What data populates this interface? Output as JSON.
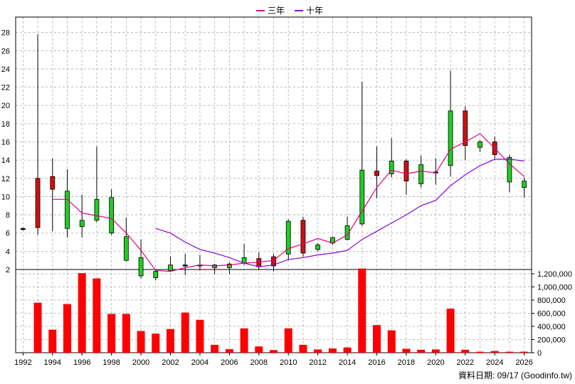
{
  "chart_data": {
    "type": "candlestick+bar",
    "legend": [
      {
        "name": "三年",
        "color": "#e0007f"
      },
      {
        "name": "十年",
        "color": "#8a00d4"
      }
    ],
    "source_text": "資料日期: 09/17  (Goodinfo.tw)",
    "x_ticks": [
      "1992",
      "1994",
      "1996",
      "1998",
      "2000",
      "2002",
      "2004",
      "2006",
      "2008",
      "2010",
      "2012",
      "2014",
      "2016",
      "2018",
      "2020",
      "2022",
      "2024",
      "2026"
    ],
    "price_axis": {
      "ticks": [
        "2",
        "4",
        "6",
        "8",
        "10",
        "12",
        "14",
        "16",
        "18",
        "20",
        "22",
        "24",
        "26",
        "28"
      ],
      "ylim": [
        0.5,
        28.5
      ]
    },
    "volume_axis": {
      "ticks": [
        "0",
        "200,000",
        "400,000",
        "600,000",
        "800,000",
        "1,000,000",
        "1,200,000"
      ],
      "ylim": [
        0,
        1200000
      ]
    },
    "candles": [
      {
        "year": 1992,
        "open": 6.5,
        "close": 6.5,
        "high": 6.6,
        "low": 6.3
      },
      {
        "year": 1993,
        "open": 6.6,
        "close": 12.0,
        "high": 27.8,
        "low": 5.8
      },
      {
        "year": 1994,
        "open": 10.8,
        "close": 12.2,
        "high": 14.2,
        "low": 6.2
      },
      {
        "year": 1995,
        "open": 10.6,
        "close": 6.5,
        "high": 13.0,
        "low": 5.5
      },
      {
        "year": 1996,
        "open": 7.4,
        "close": 6.7,
        "high": 10.2,
        "low": 5.5
      },
      {
        "year": 1997,
        "open": 9.7,
        "close": 7.4,
        "high": 15.5,
        "low": 7.2
      },
      {
        "year": 1998,
        "open": 9.9,
        "close": 6.0,
        "high": 10.8,
        "low": 5.8
      },
      {
        "year": 1999,
        "open": 5.6,
        "close": 3.0,
        "high": 7.7,
        "low": 2.9
      },
      {
        "year": 2000,
        "open": 3.3,
        "close": 1.3,
        "high": 5.3,
        "low": 1.0
      },
      {
        "year": 2001,
        "open": 1.8,
        "close": 1.1,
        "high": 2.0,
        "low": 0.8
      },
      {
        "year": 2002,
        "open": 2.5,
        "close": 1.9,
        "high": 3.4,
        "low": 1.8
      },
      {
        "year": 2003,
        "open": 2.5,
        "close": 2.5,
        "high": 3.7,
        "low": 1.4
      },
      {
        "year": 2004,
        "open": 2.5,
        "close": 2.5,
        "high": 3.6,
        "low": 1.9
      },
      {
        "year": 2005,
        "open": 2.5,
        "close": 2.2,
        "high": 2.6,
        "low": 1.5
      },
      {
        "year": 2006,
        "open": 2.6,
        "close": 2.2,
        "high": 2.8,
        "low": 1.5
      },
      {
        "year": 2007,
        "open": 3.3,
        "close": 2.7,
        "high": 4.8,
        "low": 2.5
      },
      {
        "year": 2008,
        "open": 2.3,
        "close": 3.2,
        "high": 3.9,
        "low": 2.0
      },
      {
        "year": 2009,
        "open": 2.4,
        "close": 3.4,
        "high": 3.7,
        "low": 1.8
      },
      {
        "year": 2010,
        "open": 7.3,
        "close": 3.7,
        "high": 7.5,
        "low": 3.0
      },
      {
        "year": 2011,
        "open": 3.8,
        "close": 7.4,
        "high": 7.8,
        "low": 3.4
      },
      {
        "year": 2012,
        "open": 4.7,
        "close": 4.2,
        "high": 4.9,
        "low": 4.0
      },
      {
        "year": 2013,
        "open": 5.5,
        "close": 4.9,
        "high": 5.6,
        "low": 4.7
      },
      {
        "year": 2014,
        "open": 6.8,
        "close": 5.3,
        "high": 7.8,
        "low": 5.2
      },
      {
        "year": 2015,
        "open": 12.9,
        "close": 7.0,
        "high": 22.6,
        "low": 6.8
      },
      {
        "year": 2016,
        "open": 12.3,
        "close": 12.8,
        "high": 15.5,
        "low": 9.8
      },
      {
        "year": 2017,
        "open": 13.9,
        "close": 12.5,
        "high": 16.4,
        "low": 12.1
      },
      {
        "year": 2018,
        "open": 11.7,
        "close": 13.9,
        "high": 14.1,
        "low": 10.2
      },
      {
        "year": 2019,
        "open": 13.5,
        "close": 11.4,
        "high": 14.5,
        "low": 11.0
      },
      {
        "year": 2020,
        "open": 12.7,
        "close": 12.7,
        "high": 14.2,
        "low": 11.3
      },
      {
        "year": 2021,
        "open": 19.4,
        "close": 13.4,
        "high": 23.8,
        "low": 12.2
      },
      {
        "year": 2022,
        "open": 15.6,
        "close": 19.4,
        "high": 19.9,
        "low": 14.0
      },
      {
        "year": 2023,
        "open": 16.0,
        "close": 15.4,
        "high": 16.2,
        "low": 14.9
      },
      {
        "year": 2024,
        "open": 14.6,
        "close": 16.0,
        "high": 16.6,
        "low": 14.2
      },
      {
        "year": 2025,
        "open": 14.3,
        "close": 11.6,
        "high": 14.6,
        "low": 10.5
      },
      {
        "year": 2026,
        "open": 11.7,
        "close": 11.0,
        "high": 12.1,
        "low": 9.9
      }
    ],
    "series": [
      {
        "name": "三年",
        "values": [
          [
            1994,
            9.7
          ],
          [
            1995,
            9.7
          ],
          [
            1996,
            8.2
          ],
          [
            1997,
            7.9
          ],
          [
            1998,
            7.6
          ],
          [
            1999,
            6.0
          ],
          [
            2000,
            4.1
          ],
          [
            2001,
            1.9
          ],
          [
            2002,
            1.8
          ],
          [
            2003,
            2.2
          ],
          [
            2004,
            2.5
          ],
          [
            2005,
            2.4
          ],
          [
            2006,
            2.5
          ],
          [
            2007,
            2.7
          ],
          [
            2008,
            2.8
          ],
          [
            2009,
            3.0
          ],
          [
            2010,
            4.3
          ],
          [
            2011,
            4.8
          ],
          [
            2012,
            5.4
          ],
          [
            2013,
            4.9
          ],
          [
            2014,
            5.8
          ],
          [
            2015,
            8.4
          ],
          [
            2016,
            11.0
          ],
          [
            2017,
            12.9
          ],
          [
            2018,
            12.5
          ],
          [
            2019,
            12.8
          ],
          [
            2020,
            12.6
          ],
          [
            2021,
            15.2
          ],
          [
            2022,
            16.0
          ],
          [
            2023,
            16.9
          ],
          [
            2024,
            15.3
          ],
          [
            2025,
            13.6
          ],
          [
            2026,
            12.2
          ]
        ]
      },
      {
        "name": "十年",
        "values": [
          [
            2001,
            6.5
          ],
          [
            2002,
            6.0
          ],
          [
            2003,
            5.0
          ],
          [
            2004,
            4.2
          ],
          [
            2005,
            3.8
          ],
          [
            2006,
            3.3
          ],
          [
            2007,
            2.7
          ],
          [
            2008,
            2.3
          ],
          [
            2009,
            2.5
          ],
          [
            2010,
            3.1
          ],
          [
            2011,
            3.3
          ],
          [
            2012,
            3.6
          ],
          [
            2013,
            3.8
          ],
          [
            2014,
            4.1
          ],
          [
            2015,
            5.3
          ],
          [
            2016,
            6.2
          ],
          [
            2017,
            7.1
          ],
          [
            2018,
            8.0
          ],
          [
            2019,
            9.0
          ],
          [
            2020,
            9.6
          ],
          [
            2021,
            11.2
          ],
          [
            2022,
            12.4
          ],
          [
            2023,
            13.4
          ],
          [
            2024,
            14.1
          ],
          [
            2025,
            14.1
          ],
          [
            2026,
            13.9
          ]
        ]
      }
    ],
    "volume": [
      [
        1993,
        760000
      ],
      [
        1994,
        350000
      ],
      [
        1995,
        740000
      ],
      [
        1996,
        1210000
      ],
      [
        1997,
        1130000
      ],
      [
        1998,
        590000
      ],
      [
        1999,
        590000
      ],
      [
        2000,
        330000
      ],
      [
        2001,
        290000
      ],
      [
        2002,
        360000
      ],
      [
        2003,
        610000
      ],
      [
        2004,
        500000
      ],
      [
        2005,
        120000
      ],
      [
        2006,
        55000
      ],
      [
        2007,
        370000
      ],
      [
        2008,
        95000
      ],
      [
        2009,
        40000
      ],
      [
        2010,
        370000
      ],
      [
        2011,
        120000
      ],
      [
        2012,
        50000
      ],
      [
        2013,
        65000
      ],
      [
        2014,
        80000
      ],
      [
        2015,
        1280000
      ],
      [
        2016,
        420000
      ],
      [
        2017,
        340000
      ],
      [
        2018,
        60000
      ],
      [
        2019,
        45000
      ],
      [
        2020,
        50000
      ],
      [
        2021,
        670000
      ],
      [
        2022,
        45000
      ],
      [
        2023,
        15000
      ],
      [
        2024,
        25000
      ],
      [
        2025,
        15000
      ],
      [
        2026,
        15000
      ]
    ]
  }
}
